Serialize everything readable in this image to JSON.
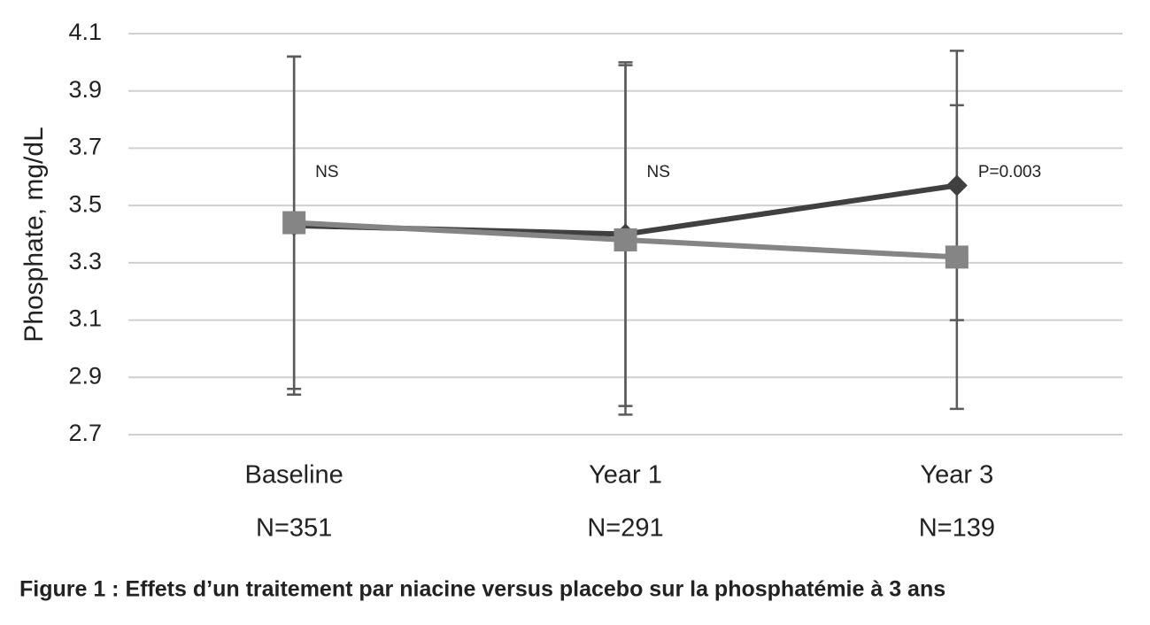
{
  "chart_data": {
    "type": "line",
    "y_label": "Phosphate, mg/dL",
    "categories": [
      "Baseline",
      "Year 1",
      "Year 3"
    ],
    "sample_sizes": [
      "N=351",
      "N=291",
      "N=139"
    ],
    "annotations": [
      "NS",
      "NS",
      "P=0.003"
    ],
    "series": [
      {
        "color": "#404040",
        "marker": "diamond",
        "values": [
          3.43,
          3.4,
          3.57
        ],
        "errors": [
          0.59,
          0.6,
          0.47
        ]
      },
      {
        "color": "#858585",
        "marker": "square",
        "values": [
          3.44,
          3.38,
          3.32
        ],
        "errors": [
          0.58,
          0.61,
          0.53
        ]
      }
    ],
    "ylim": [
      2.7,
      4.1
    ],
    "yticks": [
      2.7,
      2.9,
      3.1,
      3.3,
      3.5,
      3.7,
      3.9,
      4.1
    ],
    "grid": true,
    "caption": "Figure 1 : Effets d’un traitement par niacine versus placebo sur la phosphatémie à 3 ans"
  }
}
